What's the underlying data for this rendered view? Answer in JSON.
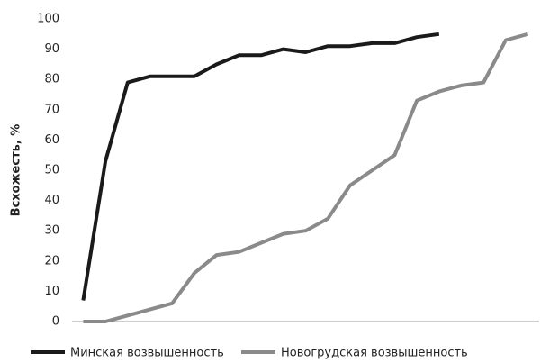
{
  "chart_data": {
    "type": "line",
    "y_label": "Всхожесть, %",
    "categories": [
      null,
      null,
      null,
      null,
      null,
      null,
      null,
      null,
      null,
      null,
      null,
      null,
      null,
      null,
      null,
      null,
      null,
      null,
      null,
      null,
      null
    ],
    "series": [
      {
        "name": "Минская возвышенность",
        "color": "#1a1a1a",
        "values": [
          7,
          53,
          79,
          81,
          81,
          81,
          85,
          88,
          88,
          90,
          89,
          91,
          91,
          92,
          92,
          94,
          95,
          null,
          null,
          null,
          null
        ]
      },
      {
        "name": "Новогрудская возвышенность",
        "color": "#8a8a8a",
        "values": [
          0,
          0,
          2,
          4,
          6,
          16,
          22,
          23,
          26,
          29,
          30,
          34,
          45,
          50,
          55,
          73,
          76,
          78,
          79,
          93,
          95
        ]
      }
    ],
    "ylim": [
      0,
      100
    ],
    "yticks": [
      0,
      10,
      20,
      30,
      40,
      50,
      60,
      70,
      80,
      90,
      100
    ],
    "grid": false
  }
}
